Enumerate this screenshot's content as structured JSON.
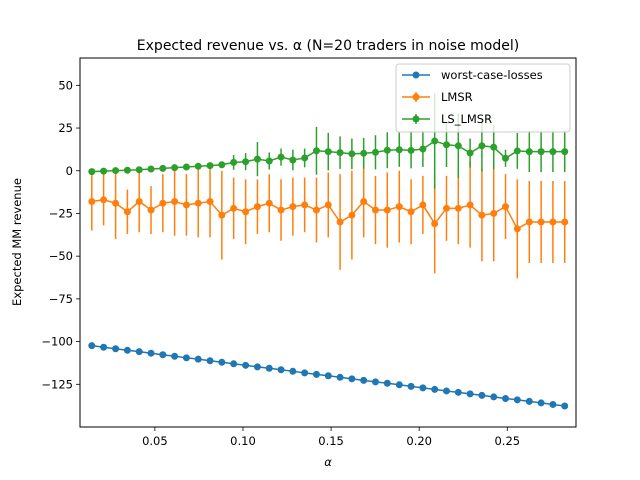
{
  "chart_data": {
    "type": "line",
    "title": "Expected revenue vs. α (N=20 traders in noise model)",
    "xlabel": "α",
    "ylabel": "Expected MM revenue",
    "xlim": [
      0.0075,
      0.289
    ],
    "ylim": [
      -150,
      66
    ],
    "xticks": [
      0.05,
      0.1,
      0.15,
      0.2,
      0.25
    ],
    "xtick_labels": [
      "0.05",
      "0.10",
      "0.15",
      "0.20",
      "0.25"
    ],
    "yticks": [
      -125,
      -100,
      -75,
      -50,
      -25,
      0,
      25,
      50
    ],
    "ytick_labels": [
      "−125",
      "−100",
      "−75",
      "−50",
      "−25",
      "0",
      "25",
      "50"
    ],
    "grid": false,
    "legend_position": "top-right",
    "x": [
      0.0142,
      0.0209,
      0.0277,
      0.0344,
      0.0411,
      0.0478,
      0.0545,
      0.0612,
      0.0679,
      0.0746,
      0.0813,
      0.088,
      0.0947,
      0.1015,
      0.1082,
      0.1149,
      0.1216,
      0.1283,
      0.135,
      0.1417,
      0.1484,
      0.1551,
      0.1618,
      0.1685,
      0.1752,
      0.1819,
      0.1887,
      0.1954,
      0.2021,
      0.2088,
      0.2155,
      0.2222,
      0.2289,
      0.2356,
      0.2423,
      0.249,
      0.2557,
      0.2625,
      0.2692,
      0.2759,
      0.2826
    ],
    "series": [
      {
        "name": "worst-case-losses",
        "color": "#1f77b4",
        "y": [
          -102.4,
          -103.3,
          -104.2,
          -105.1,
          -105.9,
          -106.8,
          -107.7,
          -108.6,
          -109.5,
          -110.3,
          -111.2,
          -112.1,
          -113.0,
          -113.9,
          -114.8,
          -115.6,
          -116.5,
          -117.4,
          -118.3,
          -119.2,
          -120.0,
          -120.9,
          -121.8,
          -122.7,
          -123.6,
          -124.4,
          -125.3,
          -126.2,
          -127.1,
          -128.0,
          -128.9,
          -129.7,
          -130.6,
          -131.5,
          -132.4,
          -133.3,
          -134.1,
          -135.0,
          -135.9,
          -136.8,
          -137.7
        ]
      },
      {
        "name": "LMSR",
        "color": "#ff7f0e",
        "y": [
          -18,
          -17,
          -19,
          -24,
          -18,
          -23,
          -19,
          -18,
          -20,
          -19,
          -18,
          -26,
          -22,
          -24,
          -21,
          -19,
          -23,
          -21,
          -20,
          -23,
          -20,
          -30,
          -26,
          -18,
          -23,
          -23,
          -21,
          -24,
          -20,
          -31,
          -22,
          -22,
          -20,
          -26,
          -25,
          -21,
          -34,
          -30,
          -30,
          -30,
          -30
        ],
        "err": [
          17,
          15,
          21,
          13,
          18,
          14,
          17,
          20,
          18,
          20,
          21,
          26,
          18,
          19,
          16,
          17,
          18,
          17,
          16,
          19,
          19,
          28,
          26,
          21,
          20,
          22,
          21,
          19,
          17,
          29,
          19,
          21,
          25,
          27,
          28,
          19,
          29,
          24,
          24,
          24,
          24
        ]
      },
      {
        "name": "LS_LMSR",
        "color": "#2ca02c",
        "y": [
          -0.5,
          -0.2,
          0.1,
          0.3,
          0.6,
          1.0,
          1.4,
          1.8,
          2.2,
          2.6,
          3.0,
          3.5,
          4.9,
          5.3,
          6.8,
          5.7,
          8.0,
          6.3,
          7.5,
          11.7,
          11.2,
          10.6,
          9.9,
          10.2,
          10.8,
          12.0,
          12.3,
          11.9,
          12.7,
          17.4,
          15.2,
          14.6,
          10.4,
          14.6,
          13.8,
          7.3,
          11.6,
          11.2,
          11.2,
          11.2,
          11.2
        ],
        "err": [
          0.5,
          0.5,
          0.5,
          0.6,
          0.7,
          0.8,
          0.9,
          1.0,
          1.1,
          1.2,
          1.4,
          1.8,
          4.3,
          5.0,
          10.0,
          5.0,
          5.0,
          6.0,
          5.5,
          14.0,
          11.0,
          9.5,
          9.0,
          9.0,
          10.0,
          10.5,
          10.0,
          10.5,
          10.5,
          28.0,
          13.0,
          19.0,
          8.5,
          15.0,
          13.0,
          5.0,
          10.5,
          12.0,
          12.0,
          12.0,
          12.0
        ]
      }
    ]
  }
}
